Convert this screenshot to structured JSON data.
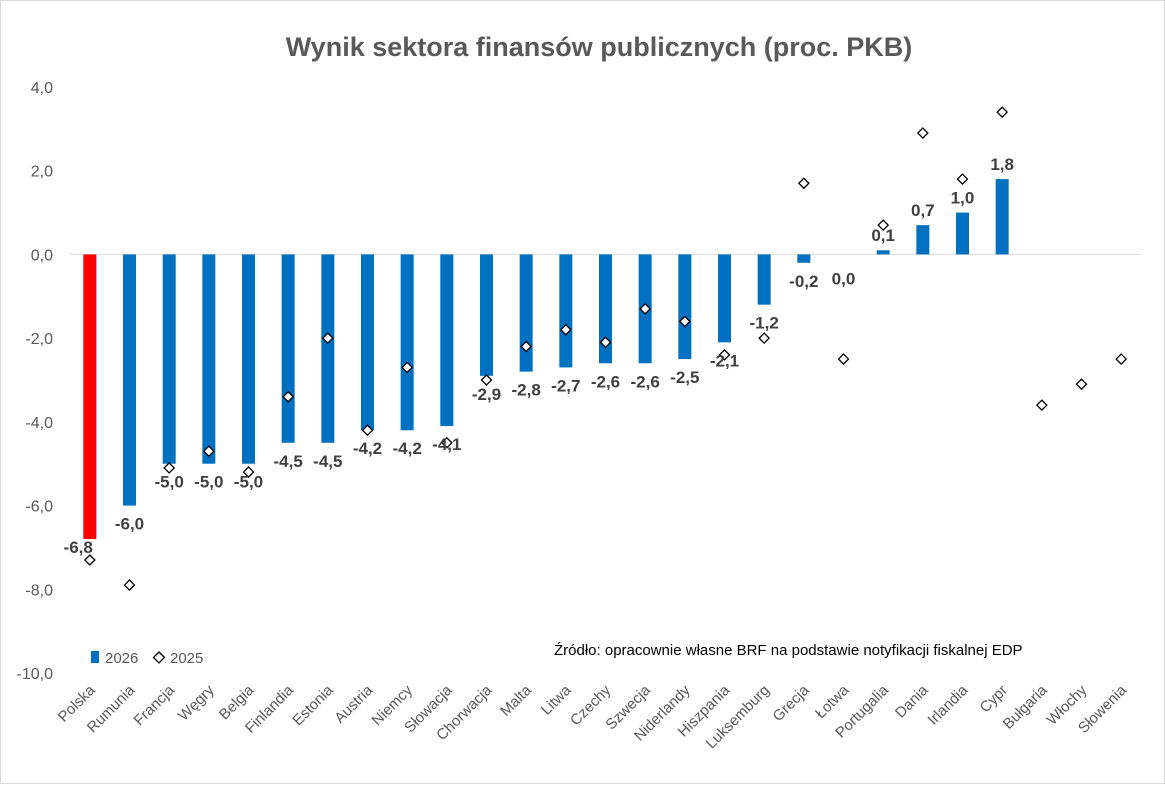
{
  "chart_data": {
    "type": "bar",
    "title": "Wynik sektora finansów publicznych (proc. PKB)",
    "categories": [
      "Polska",
      "Rumunia",
      "Francja",
      "Węgry",
      "Belgia",
      "Finlandia",
      "Estonia",
      "Austria",
      "Niemcy",
      "Słowacja",
      "Chorwacja",
      "Malta",
      "Litwa",
      "Czechy",
      "Szwecja",
      "Niderlandy",
      "Hiszpania",
      "Luksemburg",
      "Grecja",
      "Łotwa",
      "Portugalia",
      "Dania",
      "Irlandia",
      "Cypr",
      "Bułgaria",
      "Włochy",
      "Słowenia"
    ],
    "series": [
      {
        "name": "2026",
        "kind": "bar",
        "color": "#0070C0",
        "highlight": {
          "index": 0,
          "color": "#FF0000"
        },
        "values": [
          -6.8,
          -6.0,
          -5.0,
          -5.0,
          -5.0,
          -4.5,
          -4.5,
          -4.2,
          -4.2,
          -4.1,
          -2.9,
          -2.8,
          -2.7,
          -2.6,
          -2.6,
          -2.5,
          -2.1,
          -1.2,
          -0.2,
          0.0,
          0.1,
          0.7,
          1.0,
          1.8,
          null,
          null,
          null
        ],
        "labels": [
          "-6,8",
          "-6,0",
          "-5,0",
          "-5,0",
          "-5,0",
          "-4,5",
          "-4,5",
          "-4,2",
          "-4,2",
          "-4,1",
          "-2,9",
          "-2,8",
          "-2,7",
          "-2,6",
          "-2,6",
          "-2,5",
          "-2,1",
          "-1,2",
          "-0,2",
          "0,0",
          "0,1",
          "0,7",
          "1,0",
          "1,8",
          "",
          "",
          ""
        ]
      },
      {
        "name": "2025",
        "kind": "marker",
        "marker": "diamond",
        "values": [
          -7.3,
          -7.9,
          -5.1,
          -4.7,
          -5.2,
          -3.4,
          -2.0,
          -4.2,
          -2.7,
          -4.5,
          -3.0,
          -2.2,
          -1.8,
          -2.1,
          -1.3,
          -1.6,
          -2.4,
          -2.0,
          1.7,
          -2.5,
          0.7,
          2.9,
          1.8,
          3.4,
          -3.6,
          -3.1,
          -2.5
        ]
      }
    ],
    "ylim": [
      -10,
      4
    ],
    "yticks": [
      4,
      2,
      0,
      -2,
      -4,
      -6,
      -8,
      -10
    ],
    "ytick_labels": [
      "4,0",
      "2,0",
      "0,0",
      "-2,0",
      "-4,0",
      "-6,0",
      "-8,0",
      "-10,0"
    ],
    "legend": {
      "position": "bottom-left",
      "entries": [
        "2026",
        "2025"
      ]
    },
    "source_note": "Źródło: opracownie własne BRF na podstawie notyfikacji fiskalnej EDP",
    "grid": false
  }
}
